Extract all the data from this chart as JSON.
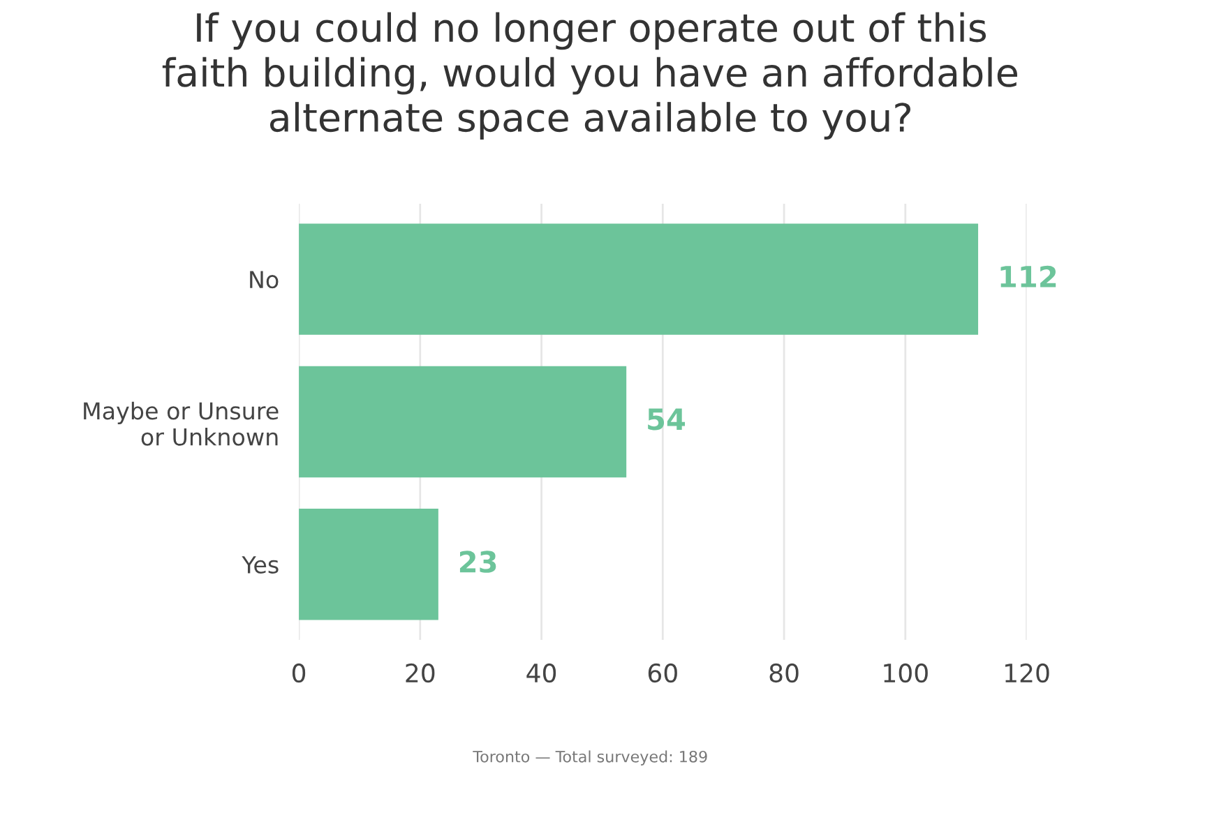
{
  "chart_data": {
    "type": "bar",
    "orientation": "horizontal",
    "title": "If you could no longer operate out of this\nfaith building, would you have an affordable\nalternate space available to you?",
    "categories": [
      "No",
      "Maybe or Unsure\nor Unknown",
      "Yes"
    ],
    "values": [
      112,
      54,
      23
    ],
    "color": "#6cc49a",
    "data_labels": true,
    "xlim": [
      0,
      120
    ],
    "xticks": [
      0,
      20,
      40,
      60,
      80,
      100,
      120
    ],
    "grid": "x",
    "annotations": [
      "Toronto — Total surveyed: 189"
    ]
  }
}
